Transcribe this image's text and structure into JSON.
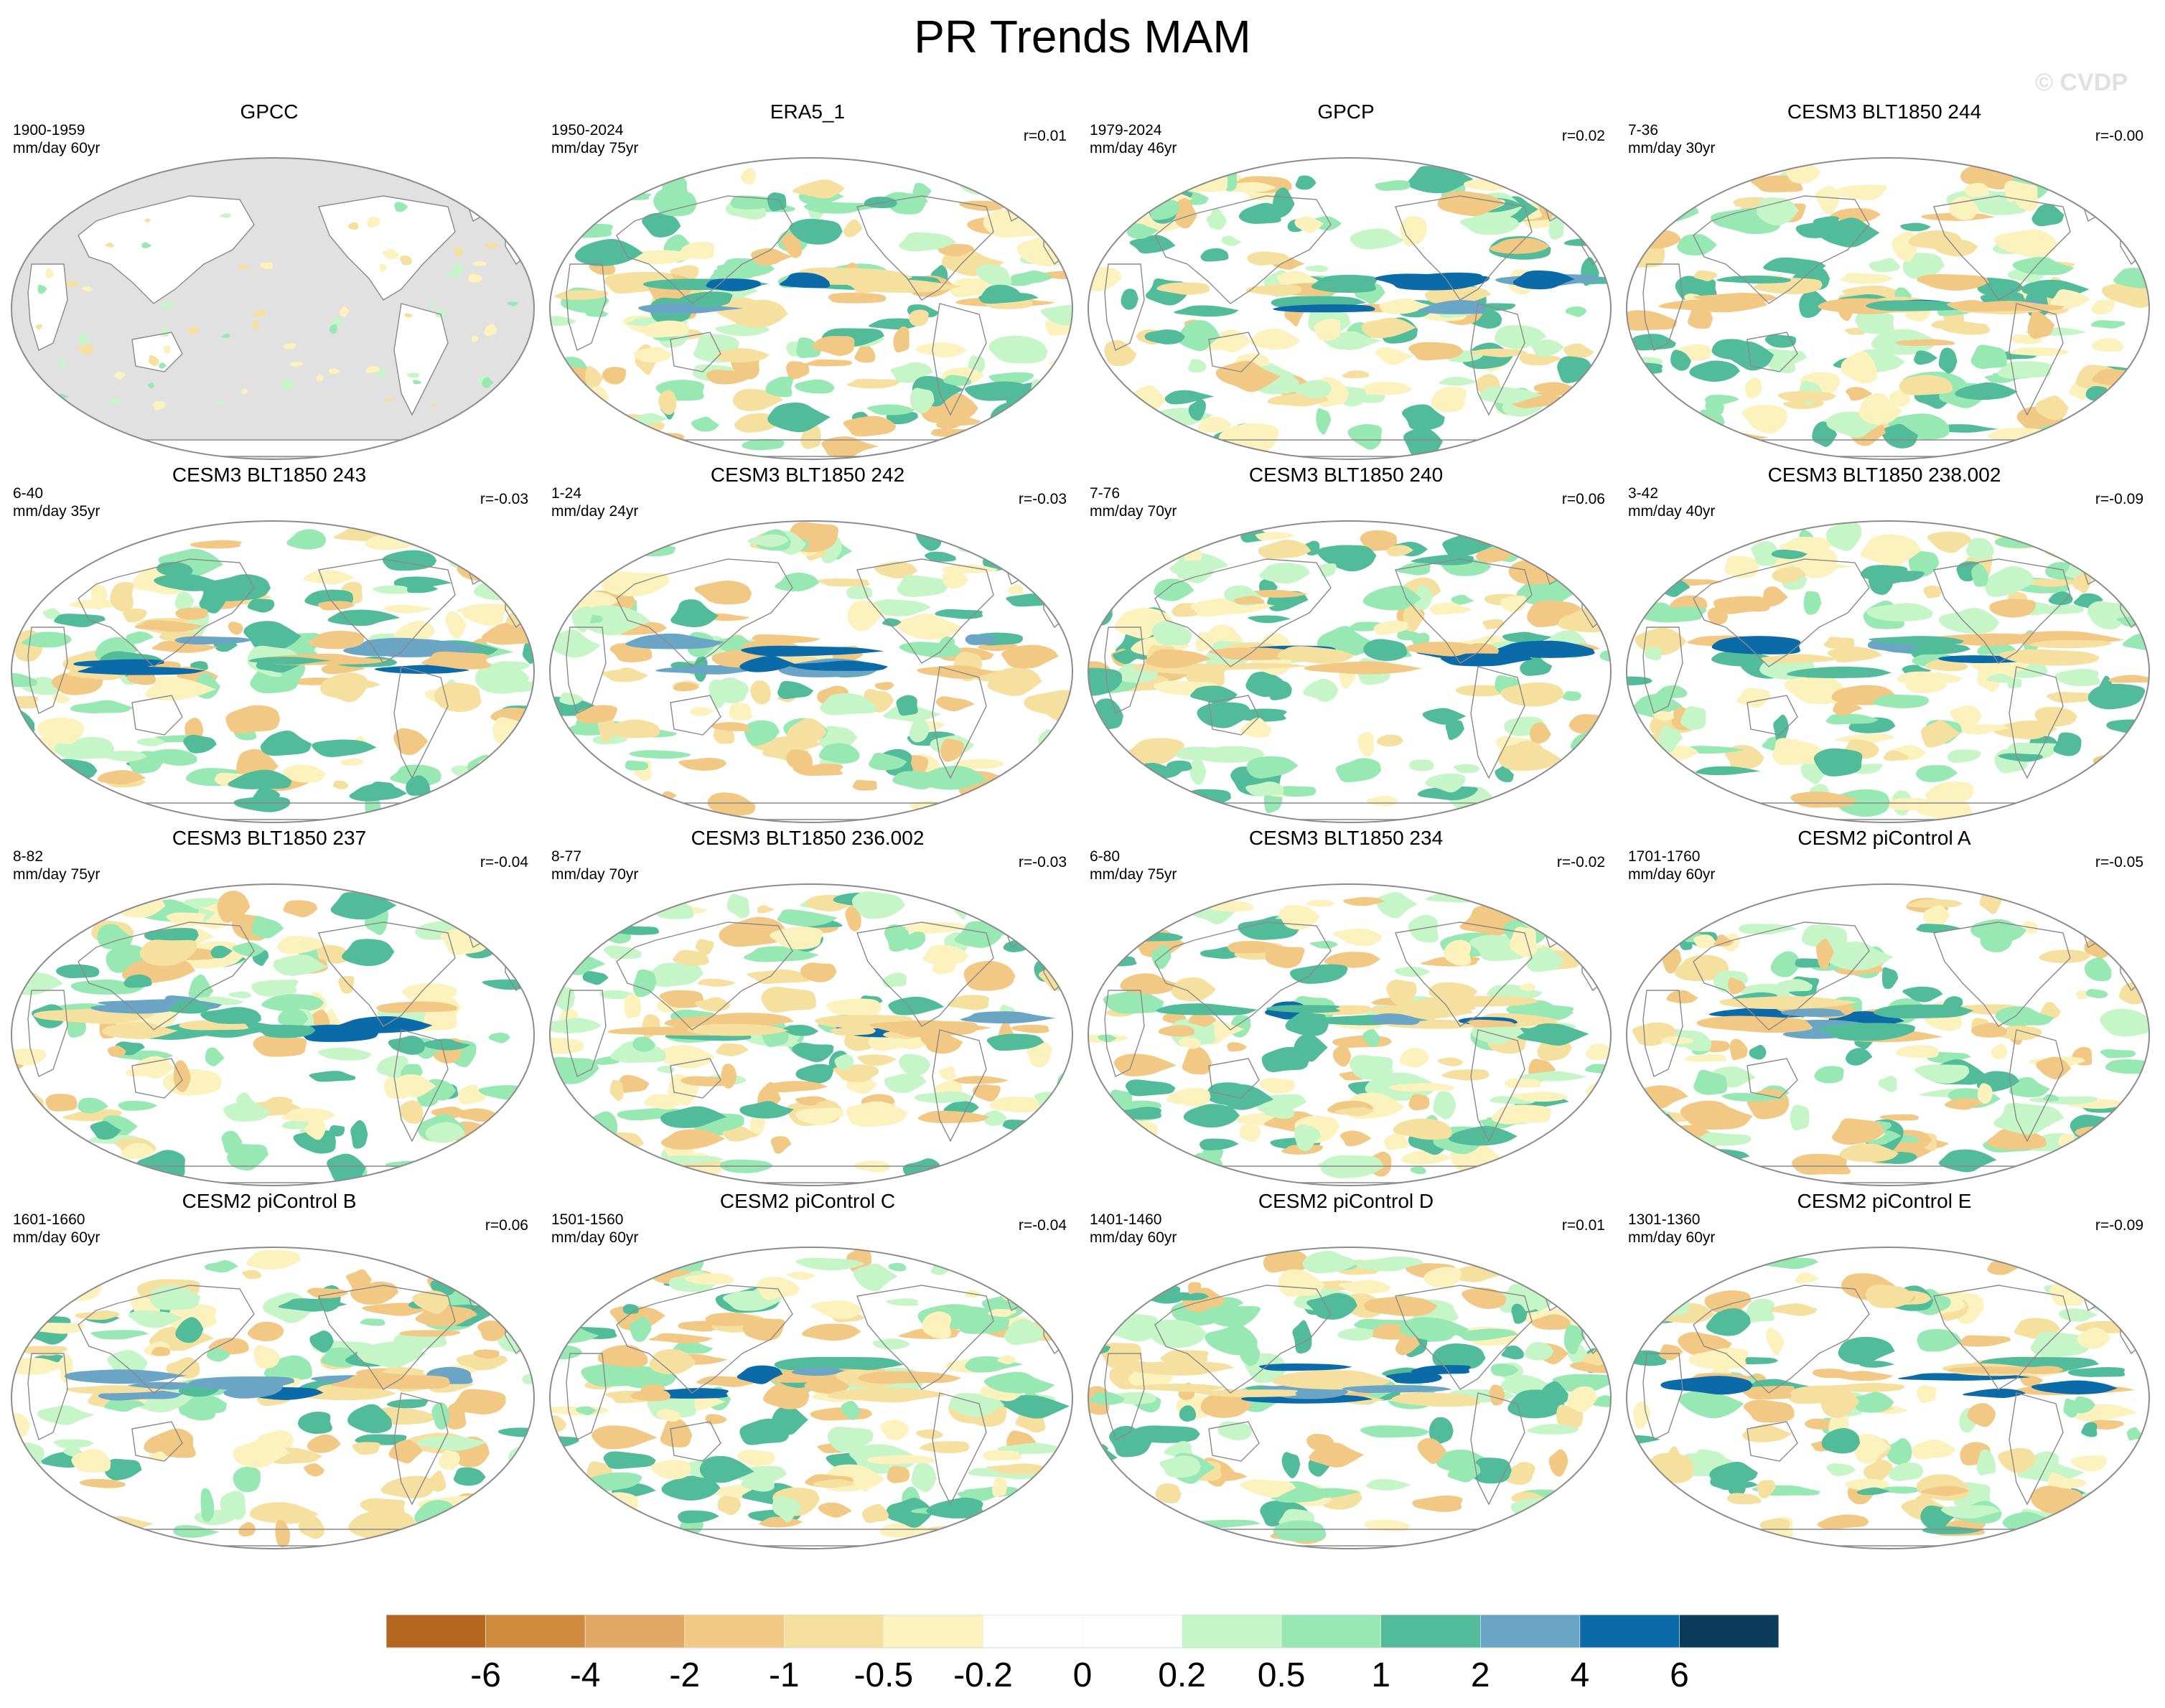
{
  "title": "PR Trends MAM",
  "watermark": "© CVDP",
  "colors": {
    "ocean_masked": "#e1e1e1",
    "coastline": "#8a8a8a",
    "outline": "#8c8c8c",
    "levels": [
      "#b5661f",
      "#cf8a3e",
      "#e1a865",
      "#f2c984",
      "#f6e0a0",
      "#fbf2be",
      "#ffffff",
      "#ffffff",
      "#c6f5c8",
      "#97e8b2",
      "#52bc9a",
      "#6ba5c6",
      "#0b6aa8",
      "#0a3b5a"
    ]
  },
  "panels": [
    {
      "title": "GPCC",
      "years": "1900-1959",
      "units": "mm/day 60yr",
      "r": "",
      "masked": true,
      "seed": 11
    },
    {
      "title": "ERA5_1",
      "years": "1950-2024",
      "units": "mm/day 75yr",
      "r": "r=0.01",
      "masked": false,
      "seed": 23
    },
    {
      "title": "GPCP",
      "years": "1979-2024",
      "units": "mm/day 46yr",
      "r": "r=0.02",
      "masked": false,
      "seed": 37
    },
    {
      "title": "CESM3 BLT1850 244",
      "years": "7-36",
      "units": "mm/day 30yr",
      "r": "r=-0.00",
      "masked": false,
      "seed": 41
    },
    {
      "title": "CESM3 BLT1850 243",
      "years": "6-40",
      "units": "mm/day 35yr",
      "r": "r=-0.03",
      "masked": false,
      "seed": 53
    },
    {
      "title": "CESM3 BLT1850 242",
      "years": "1-24",
      "units": "mm/day 24yr",
      "r": "r=-0.03",
      "masked": false,
      "seed": 67
    },
    {
      "title": "CESM3 BLT1850 240",
      "years": "7-76",
      "units": "mm/day 70yr",
      "r": "r=0.06",
      "masked": false,
      "seed": 71
    },
    {
      "title": "CESM3 BLT1850 238.002",
      "years": "3-42",
      "units": "mm/day 40yr",
      "r": "r=-0.09",
      "masked": false,
      "seed": 83
    },
    {
      "title": "CESM3 BLT1850 237",
      "years": "8-82",
      "units": "mm/day 75yr",
      "r": "r=-0.04",
      "masked": false,
      "seed": 97
    },
    {
      "title": "CESM3 BLT1850 236.002",
      "years": "8-77",
      "units": "mm/day 70yr",
      "r": "r=-0.03",
      "masked": false,
      "seed": 101
    },
    {
      "title": "CESM3 BLT1850 234",
      "years": "6-80",
      "units": "mm/day 75yr",
      "r": "r=-0.02",
      "masked": false,
      "seed": 113
    },
    {
      "title": "CESM2 piControl A",
      "years": "1701-1760",
      "units": "mm/day 60yr",
      "r": "r=-0.05",
      "masked": false,
      "seed": 127
    },
    {
      "title": "CESM2 piControl B",
      "years": "1601-1660",
      "units": "mm/day 60yr",
      "r": "r=0.06",
      "masked": false,
      "seed": 131
    },
    {
      "title": "CESM2 piControl C",
      "years": "1501-1560",
      "units": "mm/day 60yr",
      "r": "r=-0.04",
      "masked": false,
      "seed": 149
    },
    {
      "title": "CESM2 piControl D",
      "years": "1401-1460",
      "units": "mm/day 60yr",
      "r": "r=0.01",
      "masked": false,
      "seed": 157
    },
    {
      "title": "CESM2 piControl E",
      "years": "1301-1360",
      "units": "mm/day 60yr",
      "r": "r=-0.09",
      "masked": false,
      "seed": 163
    }
  ],
  "chart_data": {
    "type": "heatmap",
    "title": "PR Trends MAM",
    "variable": "PR",
    "season": "MAM",
    "projection": "Robinson (Pacific-centred)",
    "colorbar": {
      "label_values": [
        "-6",
        "-4",
        "-2",
        "-1",
        "-0.5",
        "-0.2",
        "0",
        "0.2",
        "0.5",
        "1",
        "2",
        "4",
        "6"
      ],
      "levels": [
        -6,
        -4,
        -2,
        -1,
        -0.5,
        -0.2,
        0,
        0.2,
        0.5,
        1,
        2,
        4,
        6
      ]
    }
  }
}
